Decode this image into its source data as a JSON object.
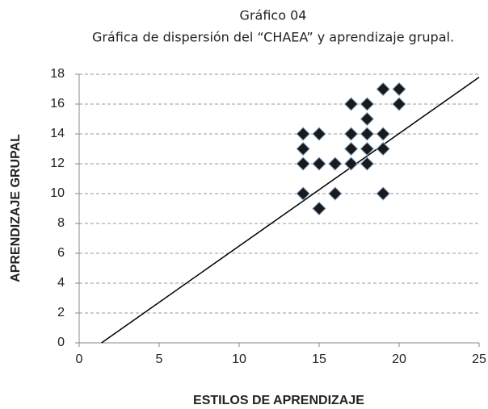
{
  "chart_data": {
    "type": "scatter",
    "title": "Gráfico 04",
    "subtitle": "Gráfica de dispersión del “CHAEA” y aprendizaje grupal.",
    "xlabel": "ESTILOS DE APRENDIZAJE",
    "ylabel": "APRENDIZAJE GRUPAL",
    "x": [
      14,
      14,
      14,
      14,
      15,
      15,
      15,
      16,
      16,
      17,
      17,
      17,
      17,
      18,
      18,
      18,
      18,
      18,
      19,
      19,
      19,
      19,
      20,
      20
    ],
    "values": [
      14,
      13,
      12,
      10,
      14,
      12,
      9,
      12,
      10,
      16,
      14,
      13,
      12,
      16,
      15,
      14,
      13,
      12,
      17,
      14,
      13,
      10,
      17,
      16
    ],
    "color": "#1a1a1a",
    "edge_color": "#8fb4d8",
    "trendline": {
      "x": [
        1.4,
        25
      ],
      "y": [
        0,
        17.8
      ],
      "color": "#000000"
    },
    "xlim": [
      0,
      25
    ],
    "xticks": [
      0,
      5,
      10,
      15,
      20,
      25
    ],
    "ylim": [
      0,
      18
    ],
    "yticks": [
      0,
      2,
      4,
      6,
      8,
      10,
      12,
      14,
      16,
      18
    ],
    "grid": true
  }
}
